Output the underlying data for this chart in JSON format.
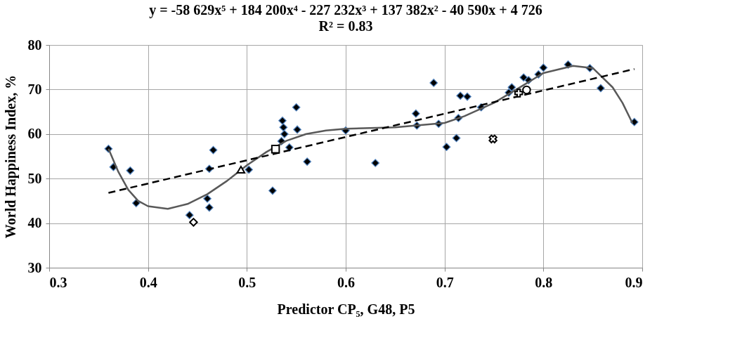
{
  "chart_data": {
    "type": "scatter",
    "title": "y = -58 629x⁵ + 184 200x⁴ - 227 232x³ + 137 382x² - 40 590x + 4 726",
    "subtitle": "R² = 0.83",
    "xlabel": "Predictor CP₅, G48, P5",
    "ylabel": "World Happiness Index,  %",
    "xlim": [
      0.3,
      0.9
    ],
    "xticks": [
      0.3,
      0.4,
      0.5,
      0.6,
      0.7,
      0.8,
      0.9
    ],
    "ylim": [
      30,
      80
    ],
    "yticks": [
      30,
      40,
      50,
      60,
      70,
      80
    ],
    "grid": true,
    "series": [
      {
        "marker": "diamond",
        "color": "#000000",
        "x": [
          0.36,
          0.365,
          0.382,
          0.388,
          0.442,
          0.46,
          0.462,
          0.462,
          0.466,
          0.502,
          0.526,
          0.535,
          0.536,
          0.537,
          0.538,
          0.543,
          0.55,
          0.551,
          0.561,
          0.6,
          0.63,
          0.671,
          0.672,
          0.689,
          0.694,
          0.702,
          0.712,
          0.714,
          0.716,
          0.723,
          0.737,
          0.765,
          0.768,
          0.78,
          0.785,
          0.795,
          0.8,
          0.825,
          0.847,
          0.858,
          0.892
        ],
        "values": [
          56.7,
          52.6,
          51.8,
          44.5,
          41.8,
          45.5,
          43.5,
          52.2,
          56.4,
          52.0,
          47.3,
          58.4,
          63.0,
          61.5,
          60.0,
          57.0,
          66.0,
          61.0,
          53.8,
          60.8,
          53.5,
          64.6,
          61.9,
          71.5,
          62.3,
          57.1,
          59.1,
          63.6,
          68.6,
          68.4,
          66.0,
          69.3,
          70.5,
          72.7,
          72.1,
          73.4,
          74.9,
          75.6,
          74.8,
          70.3,
          62.7
        ]
      },
      {
        "type": "line",
        "line_style": "solid",
        "color": "#595959",
        "x": [
          0.36,
          0.37,
          0.38,
          0.39,
          0.4,
          0.42,
          0.44,
          0.46,
          0.48,
          0.5,
          0.52,
          0.54,
          0.56,
          0.58,
          0.6,
          0.65,
          0.7,
          0.72,
          0.75,
          0.78,
          0.8,
          0.83,
          0.85,
          0.87,
          0.88,
          0.89
        ],
        "values": [
          56.7,
          51.5,
          47.5,
          45.0,
          43.8,
          43.2,
          44.3,
          46.5,
          49.5,
          53.0,
          56.0,
          58.5,
          60.0,
          60.8,
          61.2,
          61.5,
          62.5,
          64.0,
          67.0,
          71.0,
          73.7,
          75.3,
          74.8,
          70.5,
          67.0,
          62.5
        ]
      },
      {
        "type": "line",
        "line_style": "dashed",
        "color": "#000000",
        "x": [
          0.36,
          0.892
        ],
        "values": [
          46.8,
          74.6
        ]
      },
      {
        "marker": "diamond",
        "color": "#000000",
        "x": [
          0.446
        ],
        "values": [
          40.2
        ]
      },
      {
        "marker": "triangle",
        "color": "#000000",
        "x": [
          0.494
        ],
        "values": [
          52.0
        ]
      },
      {
        "marker": "square",
        "color": "#000000",
        "x": [
          0.529
        ],
        "values": [
          56.6
        ]
      },
      {
        "marker": "cross",
        "color": "#000000",
        "x": [
          0.749
        ],
        "values": [
          58.9
        ]
      },
      {
        "marker": "cross",
        "color": "#000000",
        "x": [
          0.775
        ],
        "values": [
          69.2
        ]
      },
      {
        "marker": "circle",
        "color": "#000000",
        "x": [
          0.783
        ],
        "values": [
          69.9
        ]
      }
    ]
  }
}
